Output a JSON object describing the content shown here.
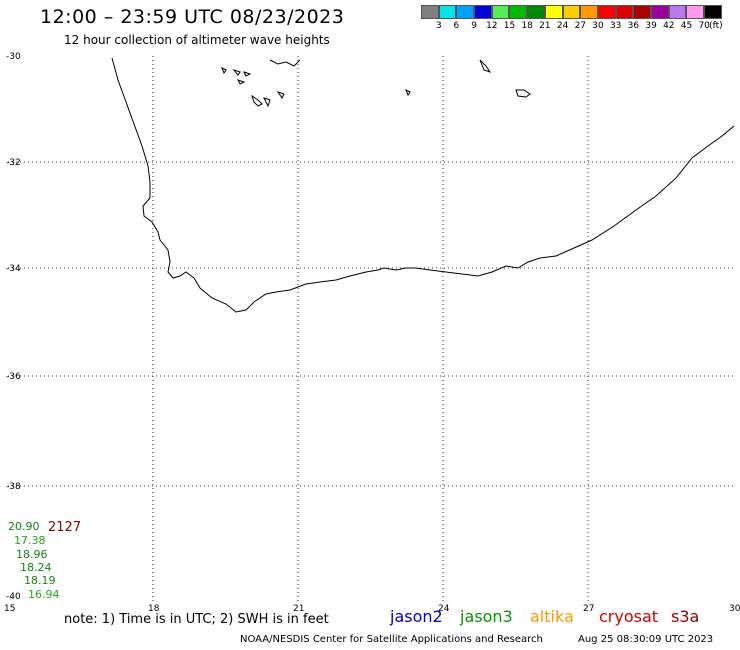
{
  "header": {
    "title": "12:00 – 23:59 UTC 08/23/2023",
    "subtitle": "12 hour collection of altimeter wave heights"
  },
  "legend": {
    "colors": [
      "#808080",
      "#00e5e5",
      "#00a0ff",
      "#0000dd",
      "#55ee55",
      "#00bb00",
      "#008800",
      "#ffff00",
      "#ffcc00",
      "#ff9900",
      "#ff0000",
      "#dd0000",
      "#aa0000",
      "#990099",
      "#bb77ee",
      "#ff99ee",
      "#000000"
    ],
    "ticks": [
      "3",
      "6",
      "9",
      "12",
      "15",
      "18",
      "21",
      "24",
      "27",
      "30",
      "33",
      "36",
      "39",
      "42",
      "45",
      "70",
      "(ft)"
    ]
  },
  "map": {
    "lat_labels": [
      "-30",
      "-32",
      "-34",
      "-36",
      "-38",
      "-40"
    ],
    "lon_labels": [
      "15",
      "18",
      "21",
      "24",
      "27",
      "30"
    ]
  },
  "wave_readings": [
    {
      "value": "20.90",
      "color": "#118811"
    },
    {
      "value": "2127",
      "color": "#880000"
    },
    {
      "value": "17.38",
      "color": "#22aa22"
    },
    {
      "value": "18.96",
      "color": "#118811"
    },
    {
      "value": "18.24",
      "color": "#118811"
    },
    {
      "value": "18.19",
      "color": "#118811"
    },
    {
      "value": "16.94",
      "color": "#22aa22"
    }
  ],
  "footer": {
    "note": "note: 1) Time is in UTC; 2) SWH is in feet",
    "satellites": [
      {
        "name": "jason2",
        "color": "#0000dd"
      },
      {
        "name": "jason3",
        "color": "#009900"
      },
      {
        "name": "altika",
        "color": "#ff9900"
      },
      {
        "name": "cryosat",
        "color": "#dd0000"
      },
      {
        "name": "s3a",
        "color": "#990000"
      }
    ],
    "credit": "NOAA/NESDIS Center for Satellite Applications and Research",
    "timestamp": "Aug 25 08:30:09 UTC 2023"
  }
}
